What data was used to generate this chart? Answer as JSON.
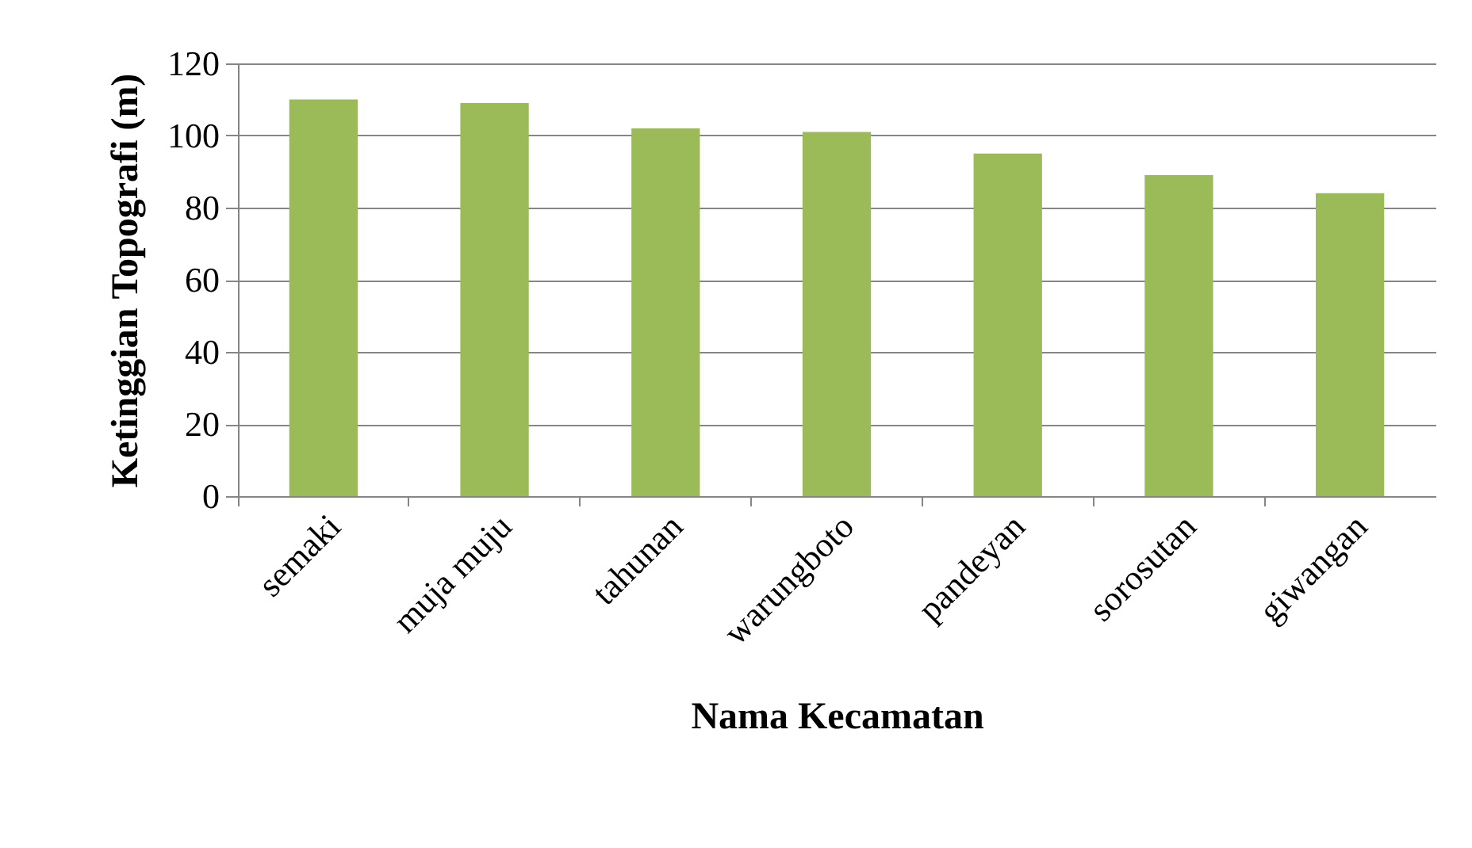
{
  "chart_data": {
    "type": "bar",
    "xlabel": "Nama Kecamatan",
    "ylabel": "Ketinggian Topografi (m)",
    "categories": [
      "semaki",
      "muja muju",
      "tahunan",
      "warungboto",
      "pandeyan",
      "sorosutan",
      "giwangan"
    ],
    "values": [
      110,
      109,
      102,
      101,
      95,
      89,
      84
    ],
    "color": "#9bbb59",
    "ylim": [
      0,
      120
    ],
    "yticks": [
      0,
      20,
      40,
      60,
      80,
      100,
      120
    ],
    "grid": "y"
  }
}
